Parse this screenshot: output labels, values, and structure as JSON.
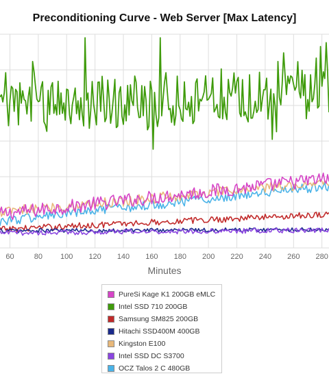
{
  "chart_data": {
    "type": "line",
    "title": "Preconditioning Curve - Web Server [Max Latency]",
    "xlabel": "Minutes",
    "ylabel": "",
    "x_visible_range": [
      53,
      285
    ],
    "x_ticks": [
      60,
      80,
      100,
      120,
      140,
      160,
      180,
      200,
      220,
      240,
      260,
      280
    ],
    "y_range": [
      0,
      6
    ],
    "grid": true,
    "legend_position": "bottom",
    "series": [
      {
        "name": "PureSi Kage K1 200GB eMLC",
        "color": "#d645c7",
        "baseline": [
          0.95,
          1.95
        ],
        "noise": 0.2
      },
      {
        "name": "Intel SSD 710 200GB",
        "color": "#3f9b0b",
        "baseline": [
          3.95,
          4.35
        ],
        "noise": 0.75
      },
      {
        "name": "Samsung SM825 200GB",
        "color": "#c12a2a",
        "baseline": [
          0.52,
          0.95
        ],
        "noise": 0.09
      },
      {
        "name": "Hitachi SSD400M 400GB",
        "color": "#1a2a8c",
        "baseline": [
          0.48,
          0.52
        ],
        "noise": 0.06
      },
      {
        "name": "Kingston E100",
        "color": "#e8b87a",
        "baseline": [
          1.0,
          1.85
        ],
        "noise": 0.15
      },
      {
        "name": "Intel SSD DC S3700",
        "color": "#8b45e0",
        "baseline": [
          0.42,
          0.5
        ],
        "noise": 0.07
      },
      {
        "name": "OCZ Talos 2 C 480GB",
        "color": "#4ab3e8",
        "baseline": [
          0.75,
          1.75
        ],
        "noise": 0.14
      }
    ]
  }
}
